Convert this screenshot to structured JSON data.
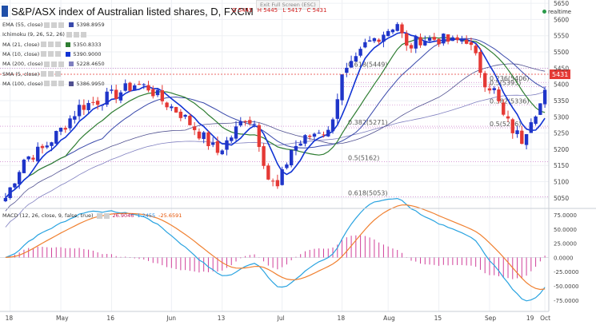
{
  "header": {
    "title": "S&P/ASX index of Australian listed shares, D, FXCM",
    "ohlc": [
      "O 5445",
      "H 5445",
      "L 5417",
      "C 5431"
    ],
    "fullscreen_label": "Exit Full Screen (ESC)",
    "realtime_label": "realtime"
  },
  "legends": [
    {
      "label": "EMA (55, close)",
      "value": "5398.8959",
      "color": "#3949ab"
    },
    {
      "label": "Ichimoku (9, 26, 52, 26)",
      "value": "",
      "color": ""
    },
    {
      "label": "MA (21, close)",
      "value": "5350.8333",
      "color": "#2e7d32"
    },
    {
      "label": "MA (10, close)",
      "value": "5390.9000",
      "color": "#1033d4"
    },
    {
      "label": "MA (200, close)",
      "value": "5228.4650",
      "color": "#8080c0"
    },
    {
      "label": "SMA (5, close)",
      "value": "",
      "color": ""
    },
    {
      "label": "MA (100, close)",
      "value": "5386.9950",
      "color": "#505090"
    }
  ],
  "macd_legend": {
    "label": "MACD (12, 26, close, 9, false, true)",
    "values": [
      {
        "text": "26.9046",
        "color": "#c2185b"
      },
      {
        "text": "1.2455",
        "color": "#1e88e5"
      },
      {
        "text": "-25.6591",
        "color": "#e65100"
      }
    ]
  },
  "colors": {
    "up": "#1f35c9",
    "down": "#e53935",
    "ma10": "#1033d4",
    "ma21": "#2e7d32",
    "ema55": "#3949ab",
    "ma100": "#505090",
    "ma200": "#8080c0",
    "fib": "#c060c0",
    "macd_line": "#29a3e0",
    "signal_line": "#f08030",
    "histogram": "#d0409a",
    "current_price": "#e53935"
  },
  "chart_data": [
    {
      "type": "candlestick",
      "title": "S&P/ASX index of Australian listed shares, D, FXCM",
      "ylim": [
        5020,
        5660
      ],
      "y_ticks": [
        5050,
        5100,
        5150,
        5200,
        5250,
        5300,
        5350,
        5400,
        5450,
        5500,
        5550,
        5600,
        5650
      ],
      "current_price_label": "5431",
      "x_tick_labels": [
        "18",
        "May",
        "16",
        "Jun",
        "13",
        "Jul",
        "18",
        "Aug",
        "15",
        "Sep",
        "19",
        "Oct"
      ],
      "fib_levels": [
        {
          "label": "0.618(5449)",
          "value": 5449
        },
        {
          "label": "0.236(5406)",
          "value": 5406
        },
        {
          "label": "0.5(5393)",
          "value": 5393
        },
        {
          "label": "0.382(5336)",
          "value": 5336
        },
        {
          "label": "0.382(5271)",
          "value": 5271
        },
        {
          "label": "0.5(5266)",
          "value": 5266
        },
        {
          "label": "0.5(5162)",
          "value": 5162
        },
        {
          "label": "0.618(5053)",
          "value": 5053
        }
      ],
      "ohlc_last": {
        "open": 5445,
        "high": 5445,
        "low": 5417,
        "close": 5431
      },
      "overlays": [
        {
          "name": "MA (10, close)",
          "last": 5390.9
        },
        {
          "name": "MA (21, close)",
          "last": 5350.8333
        },
        {
          "name": "EMA (55, close)",
          "last": 5398.8959
        },
        {
          "name": "MA (100, close)",
          "last": 5386.995
        },
        {
          "name": "MA (200, close)",
          "last": 5228.465
        }
      ]
    },
    {
      "type": "line",
      "title": "MACD (12, 26, close, 9, false, true)",
      "ylim": [
        -95,
        85
      ],
      "y_ticks": [
        75,
        50,
        25,
        0,
        -25,
        -50,
        -75
      ],
      "y_tick_labels": [
        "75.0000",
        "50.0000",
        "25.0000",
        "0.0000",
        "-25.0000",
        "-50.0000",
        "-75.0000"
      ],
      "series": [
        {
          "name": "MACD",
          "last": 1.2455
        },
        {
          "name": "Signal",
          "last": -25.6591
        },
        {
          "name": "Histogram",
          "last": 26.9046
        }
      ]
    }
  ]
}
